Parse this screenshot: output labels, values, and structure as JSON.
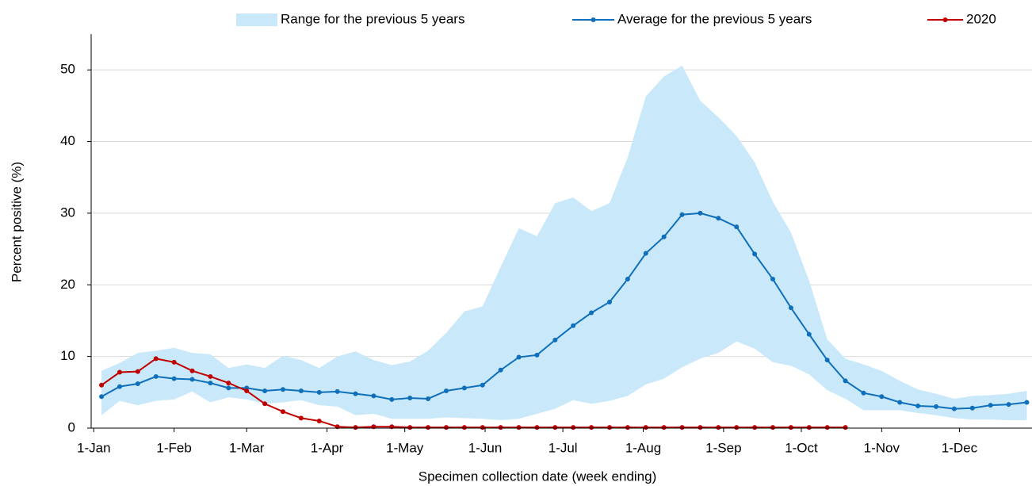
{
  "chart_data": {
    "type": "line",
    "x_label": "Specimen collection date (week ending)",
    "y_label": "Percent positive (%)",
    "xlim": [
      0,
      363
    ],
    "xticks": [
      {
        "value": 1,
        "label": "1-Jan"
      },
      {
        "value": 32,
        "label": "1-Feb"
      },
      {
        "value": 60,
        "label": "1-Mar"
      },
      {
        "value": 91,
        "label": "1-Apr"
      },
      {
        "value": 121,
        "label": "1-May"
      },
      {
        "value": 152,
        "label": "1-Jun"
      },
      {
        "value": 182,
        "label": "1-Jul"
      },
      {
        "value": 213,
        "label": "1-Aug"
      },
      {
        "value": 244,
        "label": "1-Sep"
      },
      {
        "value": 274,
        "label": "1-Oct"
      },
      {
        "value": 305,
        "label": "1-Nov"
      },
      {
        "value": 335,
        "label": "1-Dec"
      }
    ],
    "ylim": [
      0,
      55
    ],
    "yticks": [
      0,
      10,
      20,
      30,
      40,
      50
    ],
    "grid": true,
    "legend": "top",
    "x": [
      4,
      11,
      18,
      25,
      32,
      39,
      46,
      53,
      60,
      67,
      74,
      81,
      88,
      95,
      102,
      109,
      116,
      123,
      130,
      137,
      144,
      151,
      158,
      165,
      172,
      179,
      186,
      193,
      200,
      207,
      214,
      221,
      228,
      235,
      242,
      249,
      256,
      263,
      270,
      277,
      284,
      291,
      298,
      305,
      312,
      319,
      326,
      333,
      340,
      347,
      354,
      361
    ],
    "series": [
      {
        "name": "Range for the previous 5 years",
        "type": "range",
        "color": "#c9e9fb",
        "high": [
          8.0,
          9.1,
          10.5,
          10.8,
          11.2,
          10.5,
          10.3,
          8.4,
          8.9,
          8.4,
          10.1,
          9.5,
          8.4,
          10.0,
          10.7,
          9.5,
          8.8,
          9.3,
          10.8,
          13.3,
          16.3,
          17.0,
          22.5,
          27.9,
          26.8,
          31.4,
          32.2,
          30.3,
          31.4,
          37.8,
          46.3,
          49.1,
          50.6,
          45.7,
          43.4,
          40.8,
          37.1,
          31.6,
          27.3,
          20.6,
          12.4,
          9.7,
          8.9,
          8.0,
          6.6,
          5.4,
          4.8,
          4.1,
          4.5,
          4.6,
          4.8,
          5.2
        ],
        "low": [
          1.8,
          3.8,
          3.2,
          3.8,
          4.0,
          5.1,
          3.6,
          4.3,
          4.0,
          3.4,
          3.6,
          3.9,
          3.2,
          3.0,
          1.8,
          2.0,
          1.3,
          1.3,
          1.3,
          1.5,
          1.4,
          1.3,
          1.1,
          1.3,
          2.0,
          2.7,
          3.9,
          3.4,
          3.8,
          4.5,
          6.1,
          6.9,
          8.5,
          9.7,
          10.5,
          12.1,
          11.1,
          9.2,
          8.7,
          7.5,
          5.3,
          4.1,
          2.5,
          2.5,
          2.5,
          2.1,
          1.8,
          1.4,
          1.2,
          1.2,
          1.1,
          1.1
        ]
      },
      {
        "name": "Average for the previous 5 years",
        "type": "line",
        "color": "#0f6fba",
        "values": [
          4.4,
          5.8,
          6.2,
          7.2,
          6.9,
          6.8,
          6.3,
          5.6,
          5.6,
          5.2,
          5.4,
          5.2,
          5.0,
          5.1,
          4.8,
          4.5,
          4.0,
          4.2,
          4.1,
          5.2,
          5.6,
          6.0,
          8.1,
          9.9,
          10.2,
          12.3,
          14.3,
          16.1,
          17.6,
          20.8,
          24.4,
          26.7,
          29.8,
          30.0,
          29.3,
          28.1,
          24.3,
          20.8,
          16.8,
          13.1,
          9.5,
          6.6,
          4.9,
          4.4,
          3.6,
          3.1,
          3.0,
          2.7,
          2.8,
          3.2,
          3.3,
          3.6
        ]
      },
      {
        "name": "2020",
        "type": "line",
        "color": "#c00000",
        "values": [
          6.0,
          7.8,
          7.9,
          9.7,
          9.2,
          8.0,
          7.2,
          6.3,
          5.2,
          3.4,
          2.3,
          1.4,
          1.0,
          0.2,
          0.1,
          0.2,
          0.2,
          0.1,
          0.1,
          0.1,
          0.1,
          0.1,
          0.1,
          0.1,
          0.1,
          0.1,
          0.1,
          0.1,
          0.1,
          0.1,
          0.1,
          0.1,
          0.1,
          0.1,
          0.1,
          0.1,
          0.1,
          0.1,
          0.1,
          0.1,
          0.1,
          0.1,
          null,
          null,
          null,
          null,
          null,
          null,
          null,
          null,
          null,
          null
        ]
      }
    ]
  }
}
